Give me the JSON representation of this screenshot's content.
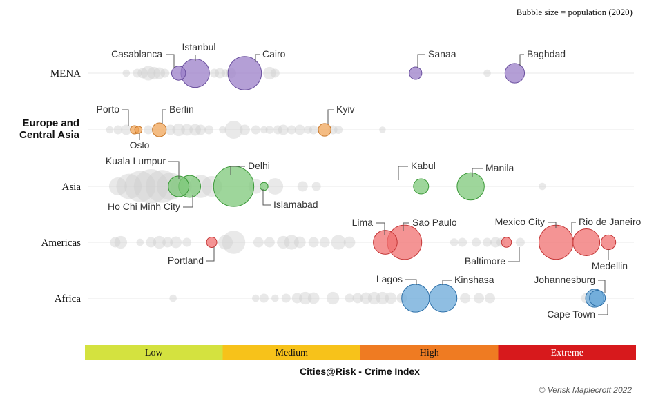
{
  "chart_data": {
    "type": "scatter",
    "subtype": "beeswarm-bubble",
    "title": "",
    "size_note": "Bubble size = population (2020)",
    "xlabel": "Cities@Risk - Crime Index",
    "credit": "© Verisk Maplecroft 2022",
    "xlim": [
      0,
      10
    ],
    "bands": [
      {
        "label": "Low",
        "from": 0,
        "to": 2.5,
        "color": "#d4e23f"
      },
      {
        "label": "Medium",
        "from": 2.5,
        "to": 5,
        "color": "#f7c21a"
      },
      {
        "label": "High",
        "from": 5,
        "to": 7.5,
        "color": "#ef7b22"
      },
      {
        "label": "Extreme",
        "from": 7.5,
        "to": 10,
        "color": "#d7191c"
      }
    ],
    "rows": [
      {
        "name": "MENA",
        "name_lines": [
          "MENA"
        ],
        "bold": false,
        "color": "#9b7fc8",
        "stroke": "#6a4f9e",
        "highlighted": [
          {
            "city": "Casablanca",
            "x": 1.7,
            "pop": 3.7
          },
          {
            "city": "Istanbul",
            "x": 2.0,
            "pop": 15.2
          },
          {
            "city": "Cairo",
            "x": 2.9,
            "pop": 20.9
          },
          {
            "city": "Sanaa",
            "x": 6.0,
            "pop": 2.9
          },
          {
            "city": "Baghdad",
            "x": 7.8,
            "pop": 7.1
          }
        ],
        "others": [
          [
            0.75,
            1
          ],
          [
            0.95,
            1.5
          ],
          [
            1.05,
            2
          ],
          [
            1.15,
            4
          ],
          [
            1.25,
            3
          ],
          [
            1.35,
            2.5
          ],
          [
            1.45,
            1.5
          ],
          [
            2.35,
            1.5
          ],
          [
            2.45,
            2
          ],
          [
            2.55,
            1.2
          ],
          [
            2.65,
            2
          ],
          [
            3.35,
            3
          ],
          [
            3.45,
            1.5
          ],
          [
            7.3,
            1
          ]
        ]
      },
      {
        "name": "Europe and Central Asia",
        "name_lines": [
          "Europe and",
          "Central Asia"
        ],
        "bold": true,
        "color": "#f0a65a",
        "stroke": "#c9782a",
        "highlighted": [
          {
            "city": "Porto",
            "x": 0.9,
            "pop": 1.3
          },
          {
            "city": "Oslo",
            "x": 0.97,
            "pop": 1.0
          },
          {
            "city": "Berlin",
            "x": 1.35,
            "pop": 3.6
          },
          {
            "city": "Kyiv",
            "x": 4.35,
            "pop": 3.0
          }
        ],
        "others": [
          [
            0.45,
            1
          ],
          [
            0.6,
            1.5
          ],
          [
            0.75,
            2
          ],
          [
            1.15,
            1.5
          ],
          [
            1.55,
            2
          ],
          [
            1.7,
            3
          ],
          [
            1.85,
            2.5
          ],
          [
            2.0,
            2.5
          ],
          [
            2.1,
            2
          ],
          [
            2.25,
            1.5
          ],
          [
            2.5,
            1
          ],
          [
            2.7,
            6
          ],
          [
            2.9,
            2
          ],
          [
            3.1,
            1.5
          ],
          [
            3.25,
            1
          ],
          [
            3.35,
            1.2
          ],
          [
            3.5,
            1.5
          ],
          [
            3.6,
            2
          ],
          [
            3.75,
            1.5
          ],
          [
            3.9,
            2
          ],
          [
            4.05,
            1.2
          ],
          [
            4.15,
            1.5
          ],
          [
            4.5,
            1.5
          ],
          [
            4.6,
            1.3
          ],
          [
            5.4,
            0.8
          ]
        ]
      },
      {
        "name": "Asia",
        "name_lines": [
          "Asia"
        ],
        "bold": false,
        "color": "#7ec87a",
        "stroke": "#3d9a3a",
        "highlighted": [
          {
            "city": "Kuala Lumpur",
            "x": 1.7,
            "pop": 8.0
          },
          {
            "city": "Ho Chi Minh City",
            "x": 1.9,
            "pop": 9.0
          },
          {
            "city": "Delhi",
            "x": 2.7,
            "pop": 30.3
          },
          {
            "city": "Islamabad",
            "x": 3.25,
            "pop": 1.2
          },
          {
            "city": "Kabul",
            "x": 6.1,
            "pop": 4.3
          },
          {
            "city": "Manila",
            "x": 7.0,
            "pop": 13.9
          }
        ],
        "others": [
          [
            0.6,
            6
          ],
          [
            0.8,
            12
          ],
          [
            1.0,
            18
          ],
          [
            1.2,
            22
          ],
          [
            1.4,
            20
          ],
          [
            1.55,
            14
          ],
          [
            1.75,
            8
          ],
          [
            2.1,
            10
          ],
          [
            2.3,
            8
          ],
          [
            3.1,
            4
          ],
          [
            3.45,
            5
          ],
          [
            3.95,
            2
          ],
          [
            4.2,
            1.5
          ],
          [
            8.3,
            1
          ]
        ]
      },
      {
        "name": "Americas",
        "name_lines": [
          "Americas"
        ],
        "bold": false,
        "color": "#f07070",
        "stroke": "#c43535",
        "highlighted": [
          {
            "city": "Portland",
            "x": 2.3,
            "pop": 2.0
          },
          {
            "city": "Lima",
            "x": 5.45,
            "pop": 10.7
          },
          {
            "city": "Sao Paulo",
            "x": 5.8,
            "pop": 22.0
          },
          {
            "city": "Mexico City",
            "x": 8.55,
            "pop": 21.8
          },
          {
            "city": "Baltimore",
            "x": 7.65,
            "pop": 1.9
          },
          {
            "city": "Rio de Janeiro",
            "x": 9.1,
            "pop": 13.5
          },
          {
            "city": "Medellin",
            "x": 9.5,
            "pop": 4.0
          }
        ],
        "others": [
          [
            0.55,
            2
          ],
          [
            0.65,
            3
          ],
          [
            1.0,
            1
          ],
          [
            1.2,
            2
          ],
          [
            1.35,
            3
          ],
          [
            1.5,
            2
          ],
          [
            1.65,
            2.5
          ],
          [
            1.85,
            1.5
          ],
          [
            2.55,
            4
          ],
          [
            2.7,
            10
          ],
          [
            3.15,
            2
          ],
          [
            3.35,
            2
          ],
          [
            3.6,
            3
          ],
          [
            3.75,
            4
          ],
          [
            3.9,
            2.5
          ],
          [
            4.15,
            2
          ],
          [
            4.35,
            2
          ],
          [
            4.6,
            4
          ],
          [
            4.8,
            2.5
          ],
          [
            6.7,
            1.2
          ],
          [
            6.85,
            1.5
          ],
          [
            7.1,
            1.5
          ],
          [
            7.3,
            1.5
          ],
          [
            7.45,
            2
          ],
          [
            7.55,
            1.5
          ],
          [
            7.9,
            1.5
          ]
        ]
      },
      {
        "name": "Africa",
        "name_lines": [
          "Africa"
        ],
        "bold": false,
        "color": "#6aa8d8",
        "stroke": "#2c6fa8",
        "highlighted": [
          {
            "city": "Lagos",
            "x": 6.0,
            "pop": 14.4
          },
          {
            "city": "Kinshasa",
            "x": 6.5,
            "pop": 14.3
          },
          {
            "city": "Johannesburg",
            "x": 9.25,
            "pop": 6.1
          },
          {
            "city": "Cape Town",
            "x": 9.3,
            "pop": 4.7
          }
        ],
        "others": [
          [
            1.6,
            1
          ],
          [
            3.1,
            1
          ],
          [
            3.25,
            1.5
          ],
          [
            3.45,
            1
          ],
          [
            3.65,
            1.5
          ],
          [
            3.85,
            2
          ],
          [
            4.0,
            3
          ],
          [
            4.15,
            2.5
          ],
          [
            4.5,
            3
          ],
          [
            4.8,
            1.5
          ],
          [
            4.95,
            2
          ],
          [
            5.1,
            2.5
          ],
          [
            5.25,
            3
          ],
          [
            5.4,
            3
          ],
          [
            5.55,
            2.5
          ],
          [
            5.75,
            2
          ],
          [
            6.9,
            2
          ],
          [
            7.15,
            2
          ],
          [
            7.35,
            2
          ],
          [
            9.1,
            2
          ]
        ]
      }
    ]
  }
}
